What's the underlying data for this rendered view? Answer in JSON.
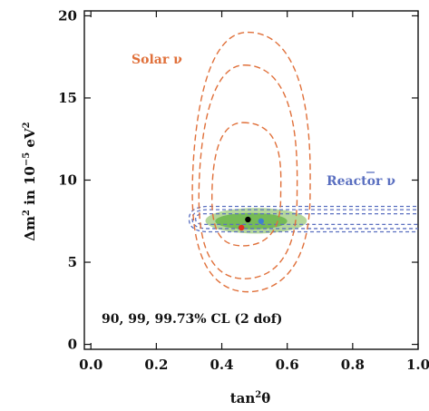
{
  "chart_data": {
    "type": "contour",
    "xlabel_main": "tan",
    "xlabel_sup": "2",
    "xlabel_end": "θ",
    "ylabel_pre": "Δm",
    "ylabel_sup1": "2",
    "ylabel_mid": " in 10",
    "ylabel_sup2": "−5",
    "ylabel_unit": " eV",
    "ylabel_sup3": "2",
    "xlim": [
      -0.02,
      1.0
    ],
    "ylim": [
      -0.3,
      20.3
    ],
    "x_ticks": [
      0.0,
      0.2,
      0.4,
      0.6,
      0.8,
      1.0
    ],
    "x_tick_labels": [
      "0.0",
      "0.2",
      "0.4",
      "0.6",
      "0.8",
      "1.0"
    ],
    "y_ticks": [
      0,
      5,
      10,
      15,
      20
    ],
    "y_tick_labels": [
      "0",
      "5",
      "10",
      "15",
      "20"
    ],
    "solar_label": "Solar ν",
    "reactor_label_text": "Reactor ",
    "reactor_label_nu": "ν",
    "cl_note": "90, 99, 99.73% CL (2 dof)",
    "colors": {
      "solar": "#e0703a",
      "reactor": "#5a6fc0",
      "global_outer": "#a8d08a",
      "global_inner": "#6fb84f",
      "black_point": "#000000",
      "blue_point": "#3f7fd0",
      "red_point": "#e03020"
    },
    "solar_contours": [
      {
        "cl": "90%",
        "center": [
          0.47,
          10.3
        ],
        "x_range": [
          0.37,
          0.58
        ],
        "y_range": [
          6.0,
          13.5
        ]
      },
      {
        "cl": "99%",
        "center": [
          0.48,
          10.6
        ],
        "x_range": [
          0.33,
          0.63
        ],
        "y_range": [
          4.0,
          17.0
        ]
      },
      {
        "cl": "99.73%",
        "center": [
          0.49,
          10.8
        ],
        "x_range": [
          0.31,
          0.67
        ],
        "y_range": [
          3.2,
          19.0
        ]
      }
    ],
    "reactor_contours": [
      {
        "cl": "90%",
        "x_range": [
          0.32,
          1.0
        ],
        "y_range": [
          7.3,
          7.95
        ]
      },
      {
        "cl": "99%",
        "x_range": [
          0.31,
          1.0
        ],
        "y_range": [
          7.05,
          8.2
        ]
      },
      {
        "cl": "99.73%",
        "x_range": [
          0.3,
          1.0
        ],
        "y_range": [
          6.85,
          8.4
        ]
      }
    ],
    "global_regions": [
      {
        "cl": "outer",
        "center": [
          0.5,
          7.5
        ],
        "x_range": [
          0.35,
          0.66
        ],
        "y_range": [
          6.75,
          8.3
        ]
      },
      {
        "cl": "inner",
        "center": [
          0.49,
          7.5
        ],
        "x_range": [
          0.38,
          0.6
        ],
        "y_range": [
          7.0,
          8.0
        ]
      }
    ],
    "best_fit_points": [
      {
        "name": "black",
        "x": 0.48,
        "y": 7.6
      },
      {
        "name": "blue",
        "x": 0.52,
        "y": 7.5
      },
      {
        "name": "red",
        "x": 0.46,
        "y": 7.1
      }
    ]
  }
}
